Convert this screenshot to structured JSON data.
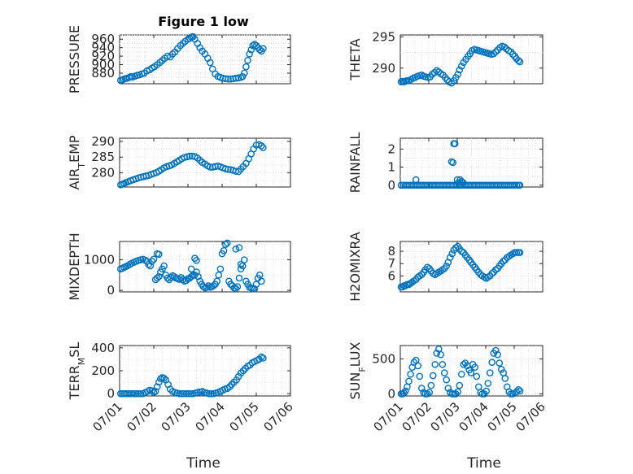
{
  "figure_title": "Figure 1 low",
  "x_axis_label": "Time",
  "chart_data": [
    {
      "type": "scatter",
      "title": "Figure 1 low",
      "ylabel": [
        "PRESSURE"
      ],
      "xlabel": "",
      "xlim": [
        0,
        5
      ],
      "ylim": [
        855,
        970
      ],
      "yticks": [
        880,
        900,
        920,
        940,
        960
      ],
      "xticks": [
        0,
        1,
        2,
        3,
        4,
        5
      ],
      "xticklabels": [],
      "grid": true,
      "color": "#0072BD",
      "x": [
        0.03,
        0.08,
        0.12,
        0.17,
        0.22,
        0.28,
        0.33,
        0.38,
        0.45,
        0.52,
        0.58,
        0.65,
        0.72,
        0.8,
        0.88,
        0.95,
        1.02,
        1.1,
        1.18,
        1.25,
        1.32,
        1.4,
        1.48,
        1.55,
        1.62,
        1.7,
        1.78,
        1.85,
        1.92,
        2.0,
        2.05,
        2.1,
        2.15,
        2.2,
        2.28,
        2.35,
        2.42,
        2.5,
        2.58,
        2.65,
        2.72,
        2.8,
        2.88,
        2.95,
        3.02,
        3.1,
        3.18,
        3.25,
        3.32,
        3.4,
        3.48,
        3.55,
        3.6,
        3.65,
        3.7,
        3.75,
        3.8,
        3.85,
        3.9,
        3.95,
        4.0,
        4.05,
        4.1,
        4.15,
        4.2
      ],
      "y": [
        863,
        864,
        866,
        867,
        868,
        870,
        872,
        871,
        873,
        875,
        876,
        878,
        880,
        885,
        888,
        892,
        895,
        900,
        905,
        910,
        915,
        920,
        918,
        925,
        930,
        938,
        945,
        950,
        955,
        960,
        962,
        965,
        966,
        960,
        950,
        940,
        932,
        925,
        915,
        905,
        890,
        878,
        872,
        870,
        868,
        867,
        866,
        866,
        867,
        868,
        869,
        870,
        872,
        880,
        895,
        910,
        925,
        935,
        945,
        948,
        945,
        940,
        935,
        932,
        938
      ]
    },
    {
      "type": "scatter",
      "title": "",
      "ylabel": [
        "THETA"
      ],
      "xlabel": "",
      "xlim": [
        0,
        5
      ],
      "ylim": [
        287.5,
        295.3
      ],
      "yticks": [
        290,
        295
      ],
      "xticks": [
        0,
        1,
        2,
        3,
        4,
        5
      ],
      "xticklabels": [],
      "grid": true,
      "color": "#0072BD",
      "x": [
        0.03,
        0.08,
        0.13,
        0.18,
        0.23,
        0.3,
        0.38,
        0.45,
        0.52,
        0.6,
        0.68,
        0.75,
        0.82,
        0.9,
        0.98,
        1.05,
        1.12,
        1.2,
        1.28,
        1.35,
        1.42,
        1.5,
        1.58,
        1.65,
        1.72,
        1.8,
        1.88,
        1.95,
        2.02,
        2.08,
        2.15,
        2.22,
        2.3,
        2.38,
        2.45,
        2.52,
        2.6,
        2.68,
        2.75,
        2.82,
        2.9,
        2.98,
        3.05,
        3.12,
        3.2,
        3.28,
        3.35,
        3.42,
        3.5,
        3.58,
        3.65,
        3.72,
        3.8,
        3.88,
        3.95,
        4.02,
        4.08,
        4.15,
        4.2
      ],
      "y": [
        287.8,
        287.9,
        287.8,
        287.9,
        288.0,
        288.0,
        288.2,
        288.4,
        288.5,
        288.7,
        288.8,
        288.9,
        288.7,
        288.6,
        288.5,
        288.6,
        289.0,
        289.3,
        289.6,
        289.4,
        289.1,
        288.9,
        288.5,
        288.1,
        287.8,
        287.6,
        288.0,
        288.5,
        289.0,
        289.7,
        290.3,
        290.9,
        291.4,
        291.9,
        292.3,
        292.8,
        293.0,
        292.9,
        292.8,
        292.7,
        292.6,
        292.5,
        292.4,
        292.3,
        292.2,
        292.3,
        292.6,
        292.9,
        293.3,
        293.5,
        293.4,
        293.1,
        292.8,
        292.6,
        292.2,
        291.9,
        291.5,
        291.2,
        291.0
      ]
    },
    {
      "type": "scatter",
      "title": "",
      "ylabel": [
        "AIR",
        "T",
        "EMP"
      ],
      "xlabel": "",
      "xlim": [
        0,
        5
      ],
      "ylim": [
        275.5,
        291
      ],
      "yticks": [
        280,
        285,
        290
      ],
      "xticks": [
        0,
        1,
        2,
        3,
        4,
        5
      ],
      "xticklabels": [],
      "grid": true,
      "color": "#0072BD",
      "x": [
        0.03,
        0.08,
        0.13,
        0.18,
        0.25,
        0.32,
        0.4,
        0.48,
        0.55,
        0.62,
        0.7,
        0.78,
        0.85,
        0.92,
        1.0,
        1.08,
        1.15,
        1.22,
        1.3,
        1.38,
        1.45,
        1.52,
        1.6,
        1.68,
        1.75,
        1.82,
        1.9,
        1.98,
        2.05,
        2.12,
        2.2,
        2.28,
        2.35,
        2.42,
        2.5,
        2.58,
        2.65,
        2.72,
        2.8,
        2.88,
        2.95,
        3.02,
        3.1,
        3.18,
        3.25,
        3.32,
        3.4,
        3.48,
        3.55,
        3.62,
        3.7,
        3.78,
        3.85,
        3.92,
        4.0,
        4.08,
        4.15,
        4.2
      ],
      "y": [
        276.2,
        276.4,
        276.6,
        276.9,
        277.2,
        277.5,
        277.8,
        278.1,
        278.4,
        278.6,
        278.8,
        279.0,
        279.2,
        279.5,
        279.8,
        280.1,
        280.5,
        281.0,
        281.6,
        282.0,
        282.2,
        282.5,
        283.0,
        283.5,
        284.0,
        284.5,
        284.9,
        285.1,
        285.3,
        285.3,
        285.2,
        284.7,
        284.0,
        283.3,
        282.8,
        282.2,
        281.8,
        281.8,
        282.0,
        282.2,
        281.9,
        281.6,
        281.3,
        281.1,
        281.0,
        280.8,
        280.5,
        280.4,
        281.2,
        282.0,
        283.0,
        284.5,
        286.0,
        287.6,
        288.8,
        289.0,
        288.6,
        288.0
      ]
    },
    {
      "type": "scatter",
      "title": "",
      "ylabel": [
        "RAINFALL"
      ],
      "xlabel": "",
      "xlim": [
        0,
        5
      ],
      "ylim": [
        -0.1,
        2.6
      ],
      "yticks": [
        0,
        1,
        2
      ],
      "xticks": [
        0,
        1,
        2,
        3,
        4,
        5
      ],
      "xticklabels": [],
      "grid": true,
      "color": "#0072BD",
      "x": [
        0.03,
        0.1,
        0.17,
        0.24,
        0.31,
        0.38,
        0.45,
        0.52,
        0.59,
        0.66,
        0.73,
        0.8,
        0.87,
        0.94,
        1.01,
        1.08,
        1.15,
        1.22,
        1.29,
        1.36,
        1.43,
        1.5,
        1.57,
        1.64,
        1.71,
        1.78,
        1.85,
        1.92,
        1.99,
        2.06,
        2.13,
        2.2,
        2.27,
        2.34,
        2.41,
        2.48,
        2.55,
        2.62,
        2.69,
        2.76,
        2.83,
        2.9,
        2.97,
        3.04,
        3.11,
        3.18,
        3.25,
        3.32,
        3.39,
        3.46,
        3.53,
        3.6,
        3.67,
        3.74,
        3.81,
        3.88,
        3.95,
        4.02,
        4.09,
        4.16,
        4.2,
        0.55,
        1.8,
        1.85,
        1.88,
        1.92,
        2.0,
        2.05,
        2.1,
        2.15,
        2.2
      ],
      "y": [
        0,
        0,
        0,
        0,
        0,
        0,
        0,
        0,
        0,
        0,
        0,
        0,
        0,
        0,
        0,
        0,
        0,
        0,
        0,
        0,
        0,
        0,
        0,
        0,
        0,
        0,
        0,
        0,
        0,
        0,
        0,
        0,
        0,
        0,
        0,
        0,
        0,
        0,
        0,
        0,
        0,
        0,
        0,
        0,
        0,
        0,
        0,
        0,
        0,
        0,
        0,
        0,
        0,
        0,
        0,
        0,
        0,
        0,
        0,
        0,
        0,
        0.3,
        1.3,
        1.25,
        2.3,
        2.3,
        0.3,
        0.15,
        0.3,
        0.2,
        0.15
      ]
    },
    {
      "type": "scatter",
      "title": "",
      "ylabel": [
        "MIXDEPTH"
      ],
      "xlabel": "",
      "xlim": [
        0,
        5
      ],
      "ylim": [
        -50,
        1600
      ],
      "yticks": [
        0,
        1000
      ],
      "xticks": [
        0,
        1,
        2,
        3,
        4,
        5
      ],
      "xticklabels": [],
      "grid": true,
      "color": "#0072BD",
      "x": [
        0.03,
        0.08,
        0.13,
        0.18,
        0.24,
        0.3,
        0.36,
        0.42,
        0.48,
        0.55,
        0.62,
        0.68,
        0.75,
        0.8,
        0.85,
        0.9,
        0.95,
        1.0,
        1.05,
        1.1,
        1.15,
        1.2,
        1.25,
        1.3,
        1.35,
        1.4,
        1.45,
        1.5,
        1.55,
        1.6,
        1.65,
        1.7,
        1.75,
        1.8,
        1.85,
        1.9,
        1.95,
        2.0,
        2.05,
        2.1,
        2.15,
        2.2,
        2.25,
        2.3,
        2.35,
        2.4,
        2.45,
        2.5,
        2.55,
        2.6,
        2.65,
        2.7,
        2.75,
        2.8,
        2.85,
        2.9,
        2.95,
        3.0,
        3.05,
        3.1,
        3.15,
        3.2,
        3.25,
        3.3,
        3.35,
        3.4,
        3.45,
        3.5,
        3.55,
        3.6,
        3.65,
        3.7,
        3.75,
        3.8,
        3.85,
        3.9,
        3.95,
        4.0,
        4.05,
        4.1,
        4.15,
        1.1,
        1.15,
        2.1,
        2.2,
        2.25,
        3.4,
        3.5,
        3.55
      ],
      "y": [
        700,
        720,
        750,
        780,
        810,
        850,
        890,
        920,
        950,
        980,
        1000,
        1020,
        990,
        950,
        850,
        800,
        950,
        1020,
        350,
        400,
        450,
        600,
        700,
        800,
        500,
        400,
        350,
        420,
        480,
        450,
        400,
        380,
        360,
        420,
        350,
        300,
        320,
        380,
        400,
        450,
        500,
        1050,
        980,
        450,
        300,
        200,
        120,
        80,
        100,
        150,
        100,
        120,
        150,
        200,
        300,
        500,
        700,
        1200,
        1300,
        1500,
        1550,
        300,
        200,
        150,
        80,
        60,
        120,
        400,
        700,
        800,
        1000,
        300,
        200,
        100,
        80,
        60,
        50,
        200,
        400,
        500,
        300,
        1200,
        1180,
        700,
        500,
        600,
        1350,
        1400,
        850
      ]
    },
    {
      "type": "scatter",
      "title": "",
      "ylabel": [
        "H2OMIXRA"
      ],
      "xlabel": "",
      "xlim": [
        0,
        5
      ],
      "ylim": [
        4.7,
        8.8
      ],
      "yticks": [
        6,
        7,
        8
      ],
      "xticks": [
        0,
        1,
        2,
        3,
        4,
        5
      ],
      "xticklabels": [],
      "grid": true,
      "color": "#0072BD",
      "x": [
        0.03,
        0.08,
        0.13,
        0.18,
        0.24,
        0.3,
        0.36,
        0.42,
        0.48,
        0.55,
        0.62,
        0.68,
        0.75,
        0.82,
        0.88,
        0.95,
        1.02,
        1.08,
        1.15,
        1.22,
        1.28,
        1.35,
        1.42,
        1.48,
        1.55,
        1.62,
        1.68,
        1.75,
        1.82,
        1.88,
        1.95,
        2.02,
        2.08,
        2.15,
        2.22,
        2.28,
        2.35,
        2.42,
        2.48,
        2.55,
        2.62,
        2.68,
        2.75,
        2.82,
        2.88,
        2.95,
        3.02,
        3.08,
        3.15,
        3.22,
        3.28,
        3.35,
        3.42,
        3.48,
        3.55,
        3.62,
        3.68,
        3.75,
        3.82,
        3.88,
        3.95,
        4.02,
        4.08,
        4.15,
        4.2
      ],
      "y": [
        5.1,
        5.1,
        5.2,
        5.2,
        5.3,
        5.3,
        5.4,
        5.5,
        5.6,
        5.7,
        5.9,
        6.0,
        6.1,
        6.3,
        6.5,
        6.7,
        6.6,
        6.4,
        6.2,
        6.1,
        6.2,
        6.3,
        6.4,
        6.5,
        6.6,
        6.8,
        7.1,
        7.5,
        7.8,
        8.1,
        8.3,
        8.4,
        8.2,
        8.0,
        7.9,
        7.7,
        7.5,
        7.3,
        7.1,
        6.9,
        6.7,
        6.5,
        6.3,
        6.1,
        6.0,
        5.9,
        5.8,
        5.9,
        6.0,
        6.2,
        6.3,
        6.5,
        6.6,
        6.8,
        7.0,
        7.2,
        7.3,
        7.5,
        7.6,
        7.7,
        7.8,
        7.9,
        7.9,
        7.9,
        7.9
      ]
    },
    {
      "type": "scatter",
      "title": "",
      "ylabel": [
        "TERR",
        "M",
        "SL"
      ],
      "xlabel": "Time",
      "xlim": [
        0,
        5
      ],
      "ylim": [
        -20,
        420
      ],
      "yticks": [
        0,
        200,
        400
      ],
      "xticks": [
        0,
        1,
        2,
        3,
        4,
        5
      ],
      "xticklabels": [
        "07/01",
        "07/02",
        "07/03",
        "07/04",
        "07/05",
        "07/06"
      ],
      "grid": true,
      "color": "#0072BD",
      "x": [
        0.03,
        0.08,
        0.13,
        0.18,
        0.24,
        0.3,
        0.36,
        0.42,
        0.48,
        0.55,
        0.62,
        0.68,
        0.75,
        0.82,
        0.88,
        0.95,
        1.0,
        1.05,
        1.1,
        1.15,
        1.2,
        1.25,
        1.3,
        1.35,
        1.42,
        1.48,
        1.55,
        1.62,
        1.68,
        1.75,
        1.82,
        1.88,
        1.95,
        2.02,
        2.08,
        2.15,
        2.22,
        2.28,
        2.35,
        2.42,
        2.48,
        2.55,
        2.62,
        2.68,
        2.75,
        2.82,
        2.88,
        2.95,
        3.02,
        3.08,
        3.15,
        3.22,
        3.28,
        3.35,
        3.42,
        3.48,
        3.55,
        3.62,
        3.68,
        3.75,
        3.82,
        3.88,
        3.95,
        4.02,
        4.08,
        4.15,
        4.2
      ],
      "y": [
        0,
        0,
        0,
        0,
        0,
        0,
        0,
        0,
        0,
        0,
        0,
        0,
        10,
        20,
        30,
        25,
        10,
        20,
        60,
        100,
        130,
        140,
        135,
        120,
        80,
        40,
        20,
        10,
        5,
        0,
        0,
        0,
        0,
        0,
        0,
        0,
        5,
        10,
        15,
        20,
        10,
        5,
        0,
        0,
        0,
        5,
        10,
        20,
        30,
        40,
        45,
        60,
        80,
        100,
        120,
        150,
        180,
        200,
        220,
        240,
        250,
        270,
        280,
        290,
        300,
        320,
        310
      ]
    },
    {
      "type": "scatter",
      "title": "",
      "ylabel": [
        "SUN",
        "F",
        "LUX"
      ],
      "xlabel": "Time",
      "xlim": [
        0,
        5
      ],
      "ylim": [
        -30,
        690
      ],
      "yticks": [
        0,
        500
      ],
      "xticks": [
        0,
        1,
        2,
        3,
        4,
        5
      ],
      "xticklabels": [
        "07/01",
        "07/02",
        "07/03",
        "07/04",
        "07/05",
        "07/06"
      ],
      "grid": true,
      "color": "#0072BD",
      "x": [
        0.03,
        0.08,
        0.13,
        0.18,
        0.24,
        0.3,
        0.36,
        0.42,
        0.48,
        0.55,
        0.62,
        0.68,
        0.75,
        0.82,
        0.88,
        0.95,
        1.02,
        1.08,
        1.15,
        1.22,
        1.28,
        1.35,
        1.42,
        1.48,
        1.55,
        1.62,
        1.68,
        1.75,
        1.82,
        1.88,
        1.95,
        2.02,
        2.08,
        2.15,
        2.22,
        2.28,
        2.35,
        2.42,
        2.48,
        2.55,
        2.62,
        2.68,
        2.75,
        2.82,
        2.88,
        2.95,
        3.02,
        3.08,
        3.15,
        3.22,
        3.28,
        3.35,
        3.42,
        3.48,
        3.55,
        3.62,
        3.68,
        3.75,
        3.82,
        3.88,
        3.95,
        4.02,
        4.08,
        4.15,
        4.2
      ],
      "y": [
        0,
        0,
        10,
        40,
        100,
        180,
        280,
        380,
        450,
        480,
        400,
        250,
        80,
        20,
        0,
        0,
        20,
        120,
        260,
        420,
        580,
        640,
        560,
        420,
        300,
        200,
        80,
        20,
        0,
        0,
        0,
        30,
        120,
        280,
        420,
        440,
        400,
        340,
        300,
        420,
        380,
        250,
        100,
        20,
        0,
        0,
        40,
        150,
        300,
        450,
        580,
        620,
        560,
        440,
        350,
        300,
        220,
        100,
        30,
        0,
        0,
        10,
        30,
        60,
        40
      ]
    }
  ]
}
